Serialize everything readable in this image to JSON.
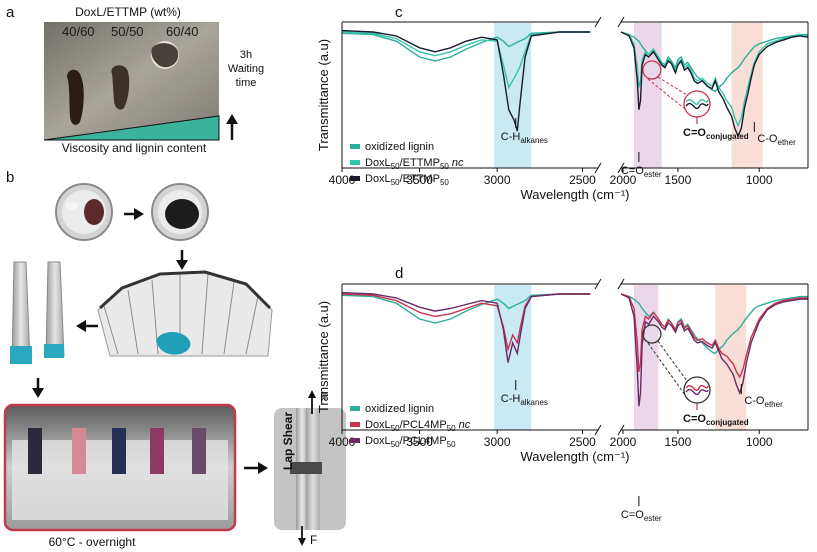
{
  "figure": {
    "panel_letters": {
      "a": "a",
      "b": "b",
      "c": "c",
      "d": "d"
    },
    "panel_a": {
      "title": "DoxL/ETTMP (wt%)",
      "samples": [
        "40/60",
        "50/50",
        "60/40"
      ],
      "waiting_time": [
        "3h",
        "Waiting",
        "time"
      ],
      "gradient_label": "Viscosity and lignin content"
    },
    "panel_b": {
      "oven_label": "60°C - overnight",
      "lap_shear_label": "Lap Shear",
      "force_label": "F"
    }
  },
  "colors": {
    "oxidized_lignin": "#2ab09a",
    "nc_c": "#36c4a8",
    "cured_c": "#1b1b2e",
    "nc_d": "#c8334f",
    "cured_d": "#6b2a63",
    "ch_band": "#bfe6f2",
    "ester_band": "#e8d0e6",
    "ether_band": "#f7d8cf",
    "highlight_red": "#c8334f",
    "oven_frame": "#c23a4c"
  },
  "chart_data": [
    {
      "type": "line",
      "panel": "c",
      "xlabel": "Wavelength (cm⁻¹)",
      "ylabel": "Transmittance (a.u)",
      "xlim": [
        4000,
        700
      ],
      "axis_break": [
        2350,
        1850
      ],
      "x_ticks": [
        "4000",
        "3500",
        "3000",
        "2500",
        "2000",
        "1500",
        "1000"
      ],
      "bands": [
        {
          "name": "C-H alkanes",
          "range": [
            3020,
            2780
          ]
        },
        {
          "name": "C=O ester",
          "range": [
            1770,
            1600
          ]
        },
        {
          "name": "C-O ether",
          "range": [
            1170,
            980
          ]
        }
      ],
      "annotations": {
        "ch": {
          "main": "C-H",
          "sub": "alkanes"
        },
        "ester": {
          "main": "C=O",
          "sub": "ester"
        },
        "conj": {
          "main": "C=O",
          "sub": "conjugated"
        },
        "ether": {
          "main": "C-O",
          "sub": "ether"
        }
      },
      "legend_placement": "bottom-left",
      "series": [
        {
          "legend_label": "oxidized lignin",
          "legend_italic": "",
          "x": [
            4000,
            3800,
            3650,
            3500,
            3400,
            3300,
            3200,
            3100,
            3000,
            2960,
            2925,
            2890,
            2855,
            2820,
            2780,
            2600,
            2400,
            1850,
            1800,
            1770,
            1740,
            1720,
            1700,
            1680,
            1650,
            1620,
            1600,
            1580,
            1560,
            1540,
            1515,
            1500,
            1480,
            1460,
            1440,
            1420,
            1400,
            1380,
            1350,
            1320,
            1290,
            1270,
            1250,
            1220,
            1200,
            1170,
            1150,
            1130,
            1110,
            1090,
            1070,
            1050,
            1030,
            1000,
            950,
            900,
            850,
            800,
            750,
            700
          ],
          "y": [
            0.96,
            0.95,
            0.9,
            0.78,
            0.75,
            0.78,
            0.84,
            0.89,
            0.93,
            0.9,
            0.86,
            0.88,
            0.9,
            0.92,
            0.96,
            0.97,
            0.97,
            0.97,
            0.95,
            0.93,
            0.9,
            0.86,
            0.83,
            0.8,
            0.83,
            0.78,
            0.74,
            0.72,
            0.78,
            0.75,
            0.7,
            0.76,
            0.78,
            0.72,
            0.74,
            0.7,
            0.66,
            0.63,
            0.6,
            0.56,
            0.53,
            0.52,
            0.55,
            0.58,
            0.62,
            0.66,
            0.68,
            0.7,
            0.73,
            0.77,
            0.8,
            0.83,
            0.86,
            0.88,
            0.9,
            0.92,
            0.93,
            0.94,
            0.95,
            0.95
          ]
        },
        {
          "legend_label": "DoxL",
          "legend_sub1": "50",
          "legend_mid": "/ETTMP",
          "legend_sub2": "50",
          "legend_italic": "nc",
          "x": [
            4000,
            3800,
            3650,
            3500,
            3400,
            3300,
            3200,
            3100,
            3000,
            2960,
            2925,
            2890,
            2855,
            2820,
            2780,
            2600,
            2400,
            1850,
            1800,
            1770,
            1750,
            1740,
            1730,
            1720,
            1700,
            1680,
            1650,
            1620,
            1600,
            1580,
            1560,
            1540,
            1515,
            1500,
            1480,
            1460,
            1440,
            1420,
            1400,
            1380,
            1350,
            1320,
            1290,
            1270,
            1250,
            1220,
            1200,
            1170,
            1150,
            1130,
            1110,
            1100,
            1090,
            1070,
            1050,
            1030,
            1000,
            950,
            900,
            850,
            800,
            750,
            700
          ],
          "y": [
            0.97,
            0.96,
            0.92,
            0.82,
            0.79,
            0.82,
            0.87,
            0.91,
            0.9,
            0.72,
            0.55,
            0.62,
            0.7,
            0.82,
            0.95,
            0.97,
            0.97,
            0.97,
            0.95,
            0.88,
            0.7,
            0.55,
            0.6,
            0.76,
            0.82,
            0.8,
            0.84,
            0.78,
            0.73,
            0.71,
            0.76,
            0.74,
            0.68,
            0.74,
            0.76,
            0.7,
            0.72,
            0.68,
            0.62,
            0.6,
            0.62,
            0.58,
            0.56,
            0.62,
            0.55,
            0.5,
            0.45,
            0.4,
            0.32,
            0.26,
            0.32,
            0.38,
            0.45,
            0.55,
            0.65,
            0.74,
            0.82,
            0.88,
            0.9,
            0.92,
            0.93,
            0.95,
            0.94
          ]
        },
        {
          "legend_label": "DoxL",
          "legend_sub1": "50",
          "legend_mid": "/ETTMP",
          "legend_sub2": "50",
          "legend_italic": "",
          "x": [
            4000,
            3800,
            3650,
            3500,
            3400,
            3300,
            3200,
            3100,
            3000,
            2960,
            2925,
            2890,
            2870,
            2855,
            2820,
            2780,
            2600,
            2400,
            1850,
            1800,
            1770,
            1750,
            1740,
            1730,
            1720,
            1700,
            1680,
            1650,
            1620,
            1600,
            1580,
            1560,
            1540,
            1515,
            1500,
            1480,
            1460,
            1440,
            1420,
            1400,
            1380,
            1350,
            1320,
            1290,
            1270,
            1250,
            1220,
            1200,
            1170,
            1150,
            1130,
            1110,
            1100,
            1090,
            1070,
            1050,
            1030,
            1000,
            950,
            900,
            850,
            800,
            750,
            700
          ],
          "y": [
            0.98,
            0.97,
            0.94,
            0.85,
            0.82,
            0.85,
            0.9,
            0.93,
            0.91,
            0.65,
            0.38,
            0.3,
            0.22,
            0.4,
            0.78,
            0.94,
            0.97,
            0.97,
            0.97,
            0.94,
            0.85,
            0.6,
            0.38,
            0.45,
            0.72,
            0.8,
            0.78,
            0.82,
            0.76,
            0.72,
            0.7,
            0.75,
            0.73,
            0.66,
            0.72,
            0.75,
            0.68,
            0.7,
            0.66,
            0.6,
            0.58,
            0.6,
            0.56,
            0.54,
            0.6,
            0.52,
            0.46,
            0.4,
            0.33,
            0.24,
            0.18,
            0.24,
            0.32,
            0.4,
            0.5,
            0.62,
            0.72,
            0.8,
            0.86,
            0.89,
            0.91,
            0.93,
            0.94,
            0.93
          ]
        }
      ]
    },
    {
      "type": "line",
      "panel": "d",
      "xlabel": "Wavelength (cm⁻¹)",
      "ylabel": "Transmittance (a.u)",
      "xlim": [
        4000,
        700
      ],
      "axis_break": [
        2350,
        1850
      ],
      "x_ticks": [
        "4000",
        "3500",
        "3000",
        "2500",
        "2000",
        "1500",
        "1000"
      ],
      "bands": [
        {
          "name": "C-H alkanes",
          "range": [
            3020,
            2780
          ]
        },
        {
          "name": "C=O ester",
          "range": [
            1770,
            1620
          ]
        },
        {
          "name": "C-O ether",
          "range": [
            1270,
            1080
          ]
        }
      ],
      "annotations": {
        "ch": {
          "main": "C-H",
          "sub": "alkanes"
        },
        "ester": {
          "main": "C=O",
          "sub": "ester"
        },
        "conj": {
          "main": "C=O",
          "sub": "conjugated"
        },
        "ether": {
          "main": "C-O",
          "sub": "ether"
        }
      },
      "legend_placement": "bottom-left",
      "series": [
        {
          "legend_label": "oxidized lignin",
          "legend_italic": "",
          "x": [
            4000,
            3800,
            3650,
            3500,
            3400,
            3300,
            3200,
            3100,
            3000,
            2960,
            2925,
            2890,
            2855,
            2820,
            2780,
            2600,
            2400,
            1850,
            1800,
            1770,
            1740,
            1720,
            1700,
            1680,
            1650,
            1620,
            1600,
            1580,
            1560,
            1540,
            1515,
            1500,
            1480,
            1460,
            1440,
            1420,
            1400,
            1380,
            1350,
            1320,
            1290,
            1270,
            1250,
            1220,
            1200,
            1170,
            1150,
            1130,
            1110,
            1090,
            1070,
            1050,
            1030,
            1000,
            950,
            900,
            850,
            800,
            750,
            700
          ],
          "y": [
            0.96,
            0.95,
            0.9,
            0.78,
            0.75,
            0.78,
            0.84,
            0.89,
            0.93,
            0.9,
            0.86,
            0.88,
            0.9,
            0.92,
            0.96,
            0.97,
            0.97,
            0.97,
            0.95,
            0.93,
            0.9,
            0.86,
            0.83,
            0.8,
            0.83,
            0.78,
            0.74,
            0.72,
            0.78,
            0.75,
            0.7,
            0.76,
            0.78,
            0.72,
            0.74,
            0.7,
            0.66,
            0.63,
            0.6,
            0.56,
            0.53,
            0.52,
            0.55,
            0.58,
            0.62,
            0.66,
            0.68,
            0.7,
            0.73,
            0.77,
            0.8,
            0.83,
            0.86,
            0.88,
            0.9,
            0.92,
            0.93,
            0.94,
            0.95,
            0.95
          ]
        },
        {
          "legend_label": "DoxL",
          "legend_sub1": "50",
          "legend_mid": "/PCL4MP",
          "legend_sub2": "50",
          "legend_italic": "nc",
          "x": [
            4000,
            3800,
            3650,
            3500,
            3400,
            3300,
            3200,
            3100,
            3000,
            2960,
            2930,
            2900,
            2870,
            2850,
            2820,
            2780,
            2600,
            2400,
            1850,
            1800,
            1770,
            1750,
            1740,
            1730,
            1720,
            1700,
            1680,
            1650,
            1620,
            1600,
            1580,
            1560,
            1540,
            1515,
            1500,
            1480,
            1460,
            1440,
            1420,
            1400,
            1380,
            1350,
            1320,
            1290,
            1270,
            1250,
            1230,
            1200,
            1180,
            1160,
            1140,
            1120,
            1100,
            1080,
            1050,
            1000,
            950,
            900,
            850,
            800,
            750,
            700
          ],
          "y": [
            0.97,
            0.96,
            0.92,
            0.83,
            0.8,
            0.82,
            0.86,
            0.9,
            0.88,
            0.72,
            0.55,
            0.66,
            0.6,
            0.72,
            0.88,
            0.95,
            0.97,
            0.97,
            0.97,
            0.95,
            0.86,
            0.6,
            0.38,
            0.45,
            0.7,
            0.8,
            0.78,
            0.83,
            0.78,
            0.74,
            0.72,
            0.77,
            0.75,
            0.7,
            0.75,
            0.77,
            0.71,
            0.73,
            0.69,
            0.64,
            0.62,
            0.63,
            0.6,
            0.58,
            0.62,
            0.56,
            0.52,
            0.5,
            0.47,
            0.44,
            0.38,
            0.34,
            0.4,
            0.5,
            0.64,
            0.78,
            0.86,
            0.9,
            0.92,
            0.93,
            0.94,
            0.94
          ]
        },
        {
          "legend_label": "DoxL",
          "legend_sub1": "50",
          "legend_mid": "/PCL4MP",
          "legend_sub2": "50",
          "legend_italic": "",
          "x": [
            4000,
            3800,
            3650,
            3500,
            3400,
            3300,
            3200,
            3100,
            3000,
            2960,
            2930,
            2900,
            2870,
            2850,
            2820,
            2780,
            2600,
            2400,
            1850,
            1800,
            1770,
            1750,
            1740,
            1730,
            1720,
            1700,
            1680,
            1650,
            1620,
            1600,
            1580,
            1560,
            1540,
            1515,
            1500,
            1480,
            1460,
            1440,
            1420,
            1400,
            1380,
            1350,
            1320,
            1290,
            1270,
            1250,
            1230,
            1200,
            1180,
            1160,
            1140,
            1120,
            1100,
            1080,
            1050,
            1000,
            950,
            900,
            850,
            800,
            750,
            700
          ],
          "y": [
            0.98,
            0.97,
            0.94,
            0.87,
            0.84,
            0.86,
            0.89,
            0.92,
            0.9,
            0.7,
            0.45,
            0.6,
            0.52,
            0.66,
            0.86,
            0.95,
            0.97,
            0.97,
            0.97,
            0.94,
            0.8,
            0.4,
            0.12,
            0.22,
            0.58,
            0.76,
            0.74,
            0.8,
            0.76,
            0.72,
            0.7,
            0.75,
            0.73,
            0.68,
            0.73,
            0.75,
            0.69,
            0.71,
            0.67,
            0.62,
            0.6,
            0.61,
            0.58,
            0.56,
            0.6,
            0.54,
            0.48,
            0.44,
            0.4,
            0.36,
            0.28,
            0.22,
            0.3,
            0.44,
            0.6,
            0.76,
            0.85,
            0.89,
            0.91,
            0.92,
            0.93,
            0.93
          ]
        }
      ]
    }
  ]
}
